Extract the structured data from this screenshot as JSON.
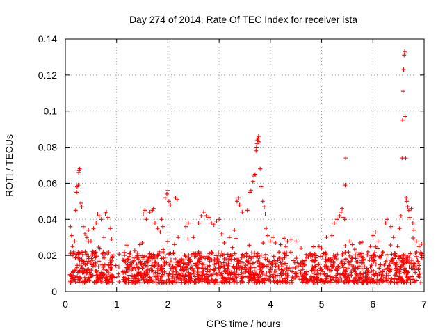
{
  "chart_data": {
    "type": "scatter",
    "title": "Day 274 of 2014, Rate Of TEC Index for receiver ista",
    "xlabel": "GPS time / hours",
    "ylabel": "ROTI / TECUs",
    "xlim": [
      0,
      7
    ],
    "ylim": [
      0,
      0.14
    ],
    "grid": true,
    "marker": "plus",
    "color": "#ff0000",
    "x_ticks": [
      0,
      1,
      2,
      3,
      4,
      5,
      6,
      7
    ],
    "x_tick_labels": [
      "0",
      "1",
      "2",
      "3",
      "4",
      "5",
      "6",
      "7"
    ],
    "y_ticks": [
      0,
      0.02,
      0.04,
      0.06,
      0.08,
      0.1,
      0.12,
      0.14
    ],
    "y_tick_labels": [
      "0",
      "0.02",
      "0.04",
      "0.06",
      "0.08",
      "0.1",
      "0.12",
      "0.14"
    ],
    "series": [
      {
        "name": "ROTI",
        "description_of_background_cloud": "dense band of points between about 0.003 and 0.02 TECU across 0.1–6.95 h",
        "points": [
          [
            0.1,
            0.036
          ],
          [
            0.12,
            0.031
          ],
          [
            0.14,
            0.025
          ],
          [
            0.16,
            0.022
          ],
          [
            0.18,
            0.028
          ],
          [
            0.2,
            0.045
          ],
          [
            0.22,
            0.055
          ],
          [
            0.23,
            0.058
          ],
          [
            0.25,
            0.059
          ],
          [
            0.26,
            0.066
          ],
          [
            0.27,
            0.067
          ],
          [
            0.28,
            0.068
          ],
          [
            0.3,
            0.049
          ],
          [
            0.32,
            0.047
          ],
          [
            0.35,
            0.036
          ],
          [
            0.38,
            0.032
          ],
          [
            0.42,
            0.03
          ],
          [
            0.45,
            0.034
          ],
          [
            0.5,
            0.028
          ],
          [
            0.55,
            0.035
          ],
          [
            0.6,
            0.038
          ],
          [
            0.63,
            0.043
          ],
          [
            0.66,
            0.042
          ],
          [
            0.7,
            0.04
          ],
          [
            0.75,
            0.03
          ],
          [
            0.78,
            0.043
          ],
          [
            0.8,
            0.044
          ],
          [
            0.83,
            0.041
          ],
          [
            0.88,
            0.035
          ],
          [
            0.9,
            0.029
          ],
          [
            1.2,
            0.018
          ],
          [
            1.25,
            0.021
          ],
          [
            1.3,
            0.016
          ],
          [
            1.45,
            0.026
          ],
          [
            1.5,
            0.027
          ],
          [
            1.52,
            0.043
          ],
          [
            1.55,
            0.045
          ],
          [
            1.58,
            0.04
          ],
          [
            1.65,
            0.044
          ],
          [
            1.7,
            0.045
          ],
          [
            1.72,
            0.046
          ],
          [
            1.75,
            0.038
          ],
          [
            1.8,
            0.035
          ],
          [
            1.85,
            0.033
          ],
          [
            1.88,
            0.04
          ],
          [
            1.9,
            0.036
          ],
          [
            1.95,
            0.052
          ],
          [
            1.98,
            0.054
          ],
          [
            2.0,
            0.056
          ],
          [
            2.02,
            0.05
          ],
          [
            2.05,
            0.048
          ],
          [
            2.15,
            0.052
          ],
          [
            2.18,
            0.051
          ],
          [
            2.2,
            0.03
          ],
          [
            2.35,
            0.036
          ],
          [
            2.4,
            0.038
          ],
          [
            2.5,
            0.03
          ],
          [
            2.6,
            0.038
          ],
          [
            2.65,
            0.042
          ],
          [
            2.7,
            0.044
          ],
          [
            2.75,
            0.042
          ],
          [
            2.8,
            0.041
          ],
          [
            2.85,
            0.038
          ],
          [
            2.9,
            0.037
          ],
          [
            2.95,
            0.039
          ],
          [
            3.0,
            0.04
          ],
          [
            3.05,
            0.032
          ],
          [
            3.1,
            0.027
          ],
          [
            3.2,
            0.03
          ],
          [
            3.3,
            0.034
          ],
          [
            3.35,
            0.05
          ],
          [
            3.38,
            0.052
          ],
          [
            3.4,
            0.048
          ],
          [
            3.45,
            0.044
          ],
          [
            3.55,
            0.045
          ],
          [
            3.6,
            0.055
          ],
          [
            3.62,
            0.056
          ],
          [
            3.66,
            0.061
          ],
          [
            3.68,
            0.064
          ],
          [
            3.7,
            0.065
          ],
          [
            3.72,
            0.078
          ],
          [
            3.73,
            0.08
          ],
          [
            3.74,
            0.082
          ],
          [
            3.75,
            0.084
          ],
          [
            3.76,
            0.085
          ],
          [
            3.77,
            0.086
          ],
          [
            3.78,
            0.083
          ],
          [
            3.8,
            0.068
          ],
          [
            3.82,
            0.058
          ],
          [
            3.85,
            0.05
          ],
          [
            3.88,
            0.047
          ],
          [
            3.9,
            0.043
          ],
          [
            3.92,
            0.035
          ],
          [
            3.95,
            0.031
          ],
          [
            4.0,
            0.028
          ],
          [
            4.05,
            0.03
          ],
          [
            4.1,
            0.027
          ],
          [
            4.2,
            0.026
          ],
          [
            4.3,
            0.025
          ],
          [
            4.4,
            0.029
          ],
          [
            4.5,
            0.028
          ],
          [
            4.6,
            0.024
          ],
          [
            4.75,
            0.02
          ],
          [
            4.95,
            0.025
          ],
          [
            5.0,
            0.024
          ],
          [
            5.2,
            0.031
          ],
          [
            5.25,
            0.038
          ],
          [
            5.3,
            0.04
          ],
          [
            5.35,
            0.042
          ],
          [
            5.38,
            0.044
          ],
          [
            5.4,
            0.046
          ],
          [
            5.42,
            0.041
          ],
          [
            5.45,
            0.04
          ],
          [
            5.46,
            0.059
          ],
          [
            5.47,
            0.074
          ],
          [
            5.55,
            0.028
          ],
          [
            5.6,
            0.026
          ],
          [
            5.75,
            0.027
          ],
          [
            5.9,
            0.022
          ],
          [
            5.95,
            0.025
          ],
          [
            6.0,
            0.031
          ],
          [
            6.05,
            0.033
          ],
          [
            6.1,
            0.028
          ],
          [
            6.25,
            0.038
          ],
          [
            6.28,
            0.04
          ],
          [
            6.35,
            0.036
          ],
          [
            6.4,
            0.03
          ],
          [
            6.48,
            0.025
          ],
          [
            6.52,
            0.035
          ],
          [
            6.55,
            0.042
          ],
          [
            6.57,
            0.074
          ],
          [
            6.58,
            0.095
          ],
          [
            6.59,
            0.111
          ],
          [
            6.6,
            0.123
          ],
          [
            6.61,
            0.131
          ],
          [
            6.62,
            0.133
          ],
          [
            6.63,
            0.097
          ],
          [
            6.64,
            0.074
          ],
          [
            6.65,
            0.052
          ],
          [
            6.66,
            0.05
          ],
          [
            6.68,
            0.047
          ],
          [
            6.7,
            0.045
          ],
          [
            6.72,
            0.041
          ],
          [
            6.75,
            0.046
          ],
          [
            6.78,
            0.038
          ],
          [
            6.8,
            0.034
          ],
          [
            6.85,
            0.028
          ],
          [
            6.9,
            0.025
          ],
          [
            6.95,
            0.021
          ]
        ]
      }
    ]
  }
}
